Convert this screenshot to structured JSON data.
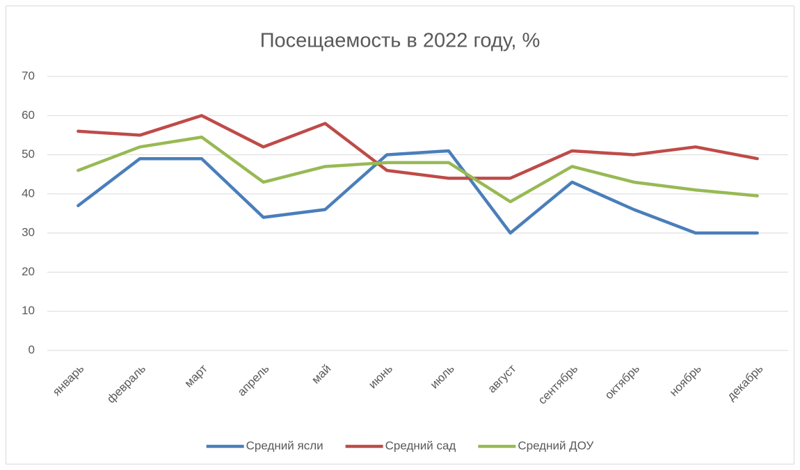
{
  "chart_data": {
    "type": "line",
    "title": "Посещаемость в 2022 году, %",
    "categories": [
      "январь",
      "февраль",
      "март",
      "апрель",
      "май",
      "июнь",
      "июль",
      "август",
      "сентябрь",
      "октябрь",
      "ноябрь",
      "декабрь"
    ],
    "series": [
      {
        "name": "Средний ясли",
        "color": "#4a7ebb",
        "values": [
          37,
          49,
          49,
          34,
          36,
          50,
          51,
          30,
          43,
          36,
          30,
          30
        ]
      },
      {
        "name": "Средний сад",
        "color": "#be4b48",
        "values": [
          56,
          55,
          60,
          52,
          58,
          46,
          44,
          44,
          51,
          50,
          52,
          49
        ]
      },
      {
        "name": "Средний ДОУ",
        "color": "#98b954",
        "values": [
          46,
          52,
          54.5,
          43,
          47,
          48,
          48,
          38,
          47,
          43,
          41,
          39.5
        ]
      }
    ],
    "ylim": [
      0,
      70
    ],
    "yticks": [
      0,
      10,
      20,
      30,
      40,
      50,
      60,
      70
    ],
    "grid": true,
    "legend": "bottom"
  }
}
